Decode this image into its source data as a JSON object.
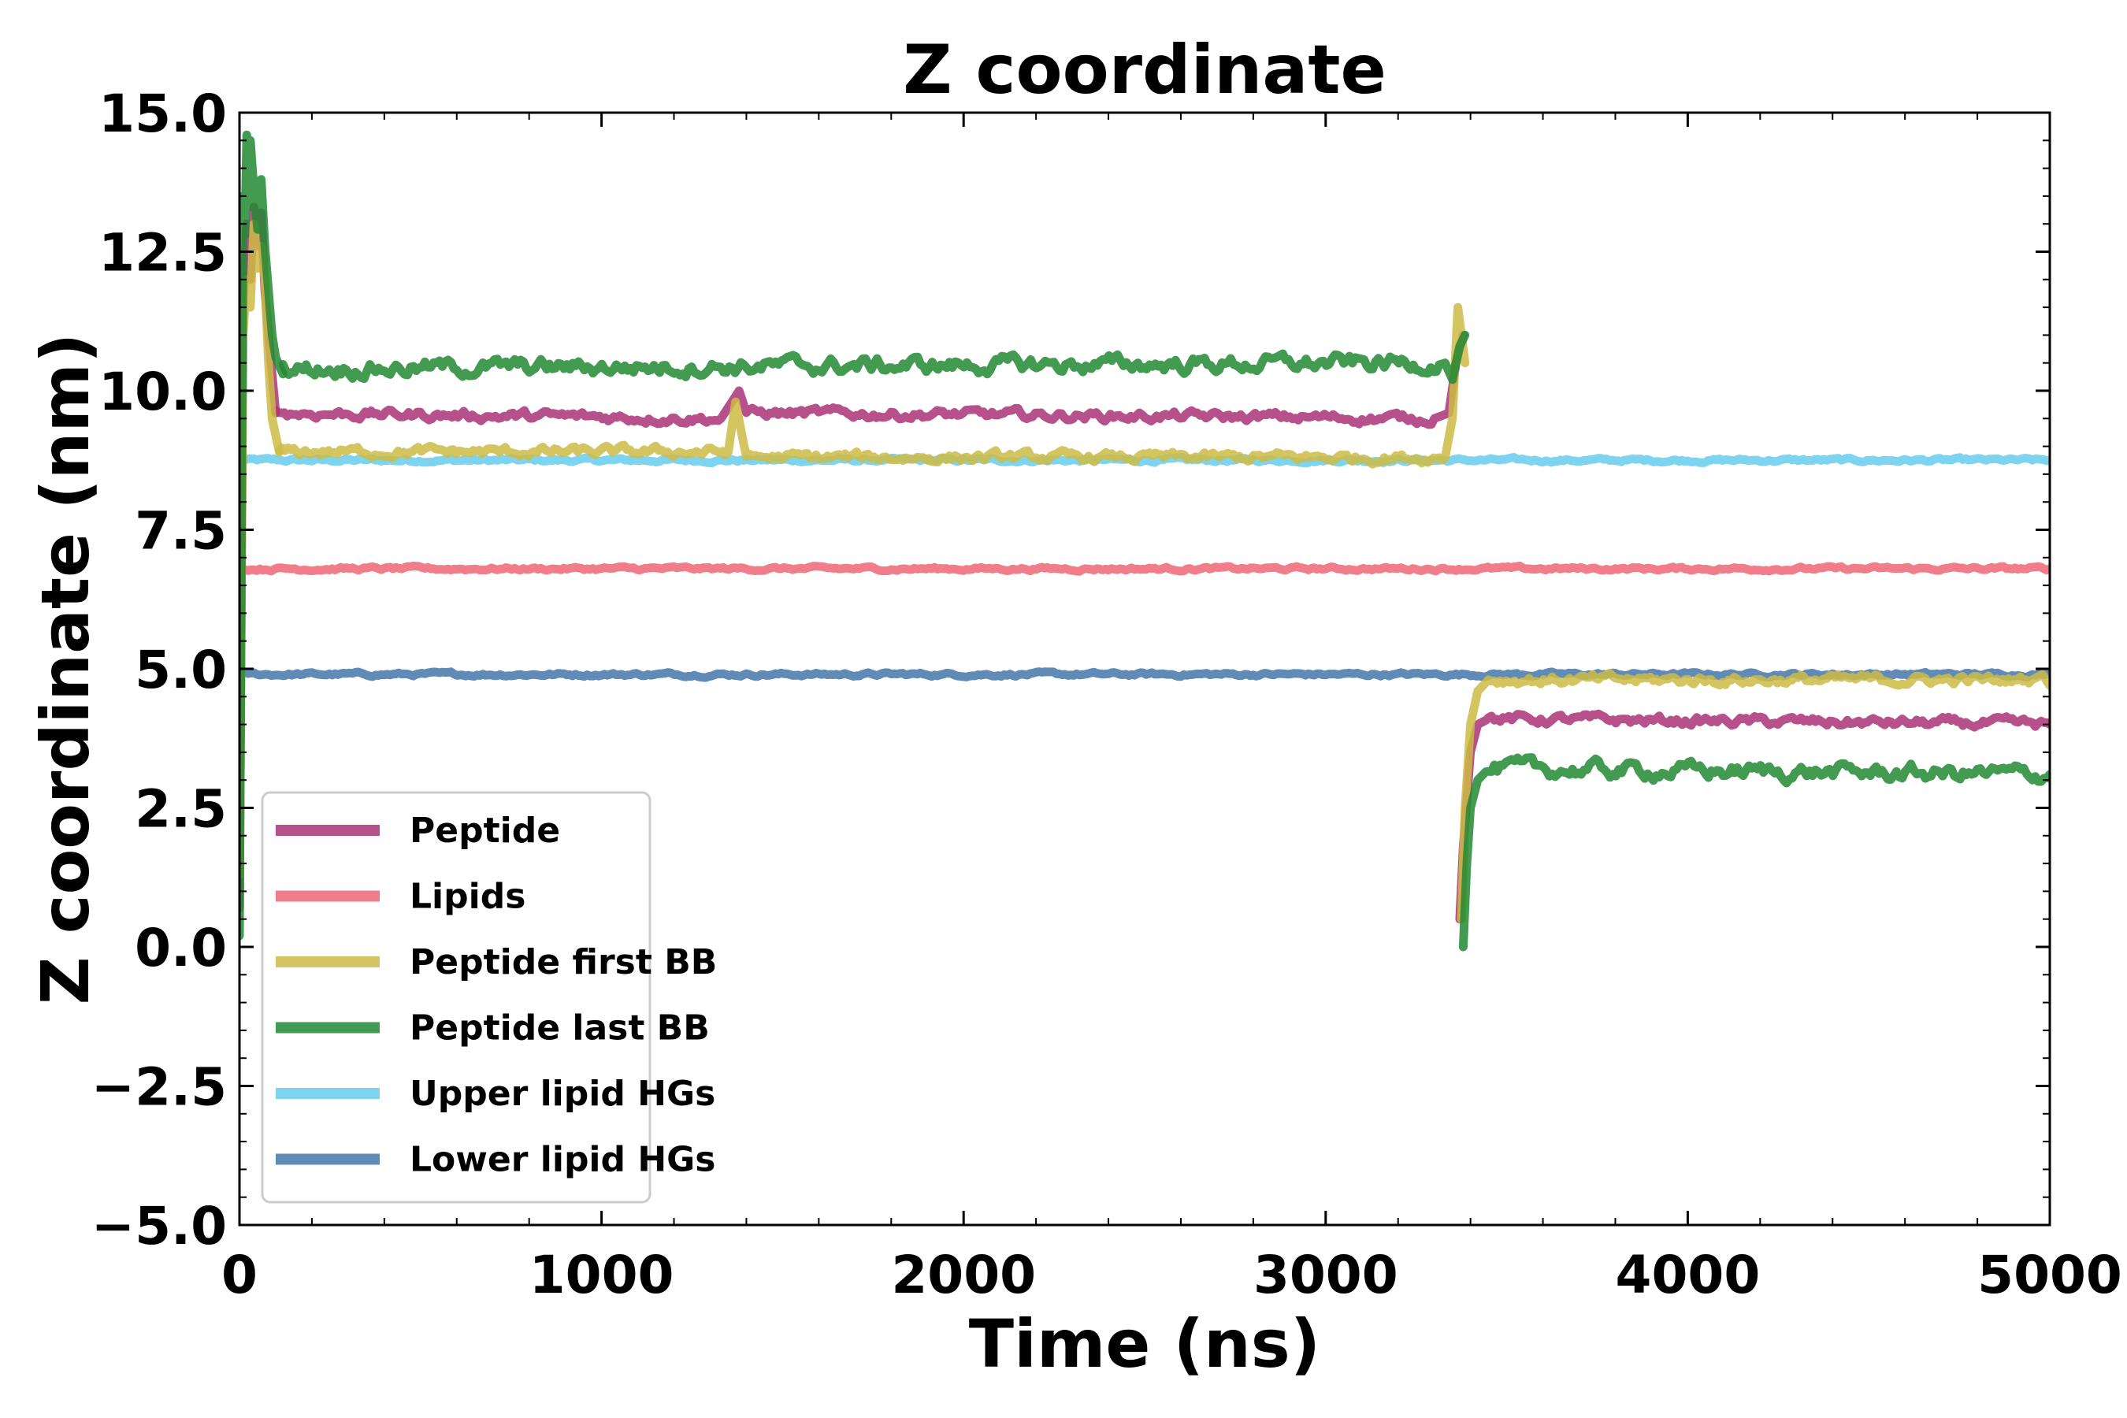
{
  "chart_data": {
    "type": "line",
    "title": "Z coordinate",
    "xlabel": "Time (ns)",
    "ylabel": "Z coordinate (nm)",
    "xlim": [
      0,
      5000
    ],
    "ylim": [
      -5.0,
      15.0
    ],
    "xticks": [
      0,
      1000,
      2000,
      3000,
      4000,
      5000
    ],
    "xtick_labels": [
      "0",
      "1000",
      "2000",
      "3000",
      "4000",
      "5000"
    ],
    "yticks": [
      -5.0,
      -2.5,
      0.0,
      2.5,
      5.0,
      7.5,
      10.0,
      12.5,
      15.0
    ],
    "ytick_labels": [
      "−5.0",
      "−2.5",
      "0.0",
      "2.5",
      "5.0",
      "7.5",
      "10.0",
      "12.5",
      "15.0"
    ],
    "grid": false,
    "legend_position": "lower-left",
    "series": [
      {
        "name": "Peptide",
        "color": "#aa3377",
        "segments": [
          {
            "x": [
              0,
              10,
              20,
              30,
              40,
              50,
              60,
              70,
              80,
              100
            ],
            "y": [
              0.7,
              11.5,
              13.0,
              12.0,
              13.3,
              12.6,
              13.2,
              11.8,
              11.0,
              9.6
            ]
          },
          {
            "x": [
              100,
              1330,
              1360,
              1380,
              1400,
              3300,
              3340,
              3360,
              3380
            ],
            "y": [
              9.6,
              9.5,
              9.8,
              10.0,
              9.6,
              9.5,
              9.6,
              10.5,
              11.0
            ]
          },
          {
            "x": [
              3370,
              3380,
              3400,
              3420,
              3450,
              5000
            ],
            "y": [
              0.5,
              1.8,
              3.5,
              4.0,
              4.1,
              4.0
            ]
          }
        ],
        "mean_levels": {
          "0-100": 12.5,
          "100-3380": 9.5,
          "3400-5000": 4.1
        }
      },
      {
        "name": "Lipids",
        "color": "#ee6677",
        "segments": [
          {
            "x": [
              0,
              5000
            ],
            "y": [
              6.8,
              6.8
            ]
          }
        ],
        "mean_levels": {
          "0-5000": 6.8
        }
      },
      {
        "name": "Peptide first BB",
        "color": "#ccbb44",
        "segments": [
          {
            "x": [
              0,
              10,
              20,
              30,
              40,
              50,
              60,
              70,
              80,
              90,
              110
            ],
            "y": [
              1.3,
              11.0,
              12.0,
              11.5,
              13.0,
              12.2,
              12.6,
              12.0,
              10.5,
              9.5,
              8.9
            ]
          },
          {
            "x": [
              110,
              1350,
              1370,
              1400,
              3330,
              3350,
              3365,
              3375,
              3385
            ],
            "y": [
              8.9,
              8.9,
              9.8,
              8.8,
              8.8,
              9.5,
              11.5,
              11.0,
              10.5
            ]
          },
          {
            "x": [
              3375,
              3385,
              3400,
              3420,
              3450,
              4950,
              4980,
              5000
            ],
            "y": [
              0.5,
              2.5,
              4.0,
              4.6,
              4.8,
              4.8,
              4.9,
              4.7
            ]
          }
        ],
        "mean_levels": {
          "0-100": 12.0,
          "110-3380": 8.9,
          "3420-5000": 4.8
        }
      },
      {
        "name": "Peptide last BB",
        "color": "#228833",
        "segments": [
          {
            "x": [
              0,
              10,
              15,
              20,
              25,
              30,
              40,
              50,
              60,
              70,
              80,
              90,
              100,
              120
            ],
            "y": [
              0.2,
              13.5,
              12.8,
              14.6,
              13.3,
              14.5,
              13.6,
              12.9,
              13.8,
              12.6,
              11.8,
              11.0,
              10.6,
              10.3
            ]
          },
          {
            "x": [
              120,
              3330,
              3350,
              3370,
              3385
            ],
            "y": [
              10.4,
              10.5,
              10.2,
              10.8,
              11.0
            ]
          },
          {
            "x": [
              3380,
              3390,
              3400,
              3420,
              3450,
              5000
            ],
            "y": [
              0.0,
              1.5,
              2.5,
              3.0,
              3.2,
              3.1
            ]
          }
        ],
        "mean_levels": {
          "0-100": 13.5,
          "120-3380": 10.5,
          "3420-5000": 3.1
        }
      },
      {
        "name": "Upper lipid HGs",
        "color": "#66ccee",
        "segments": [
          {
            "x": [
              0,
              5000
            ],
            "y": [
              8.75,
              8.75
            ]
          }
        ],
        "mean_levels": {
          "0-5000": 8.75
        }
      },
      {
        "name": "Lower lipid HGs",
        "color": "#4477aa",
        "segments": [
          {
            "x": [
              0,
              5000
            ],
            "y": [
              4.9,
              4.9
            ]
          }
        ],
        "mean_levels": {
          "0-5000": 4.9
        }
      }
    ]
  }
}
